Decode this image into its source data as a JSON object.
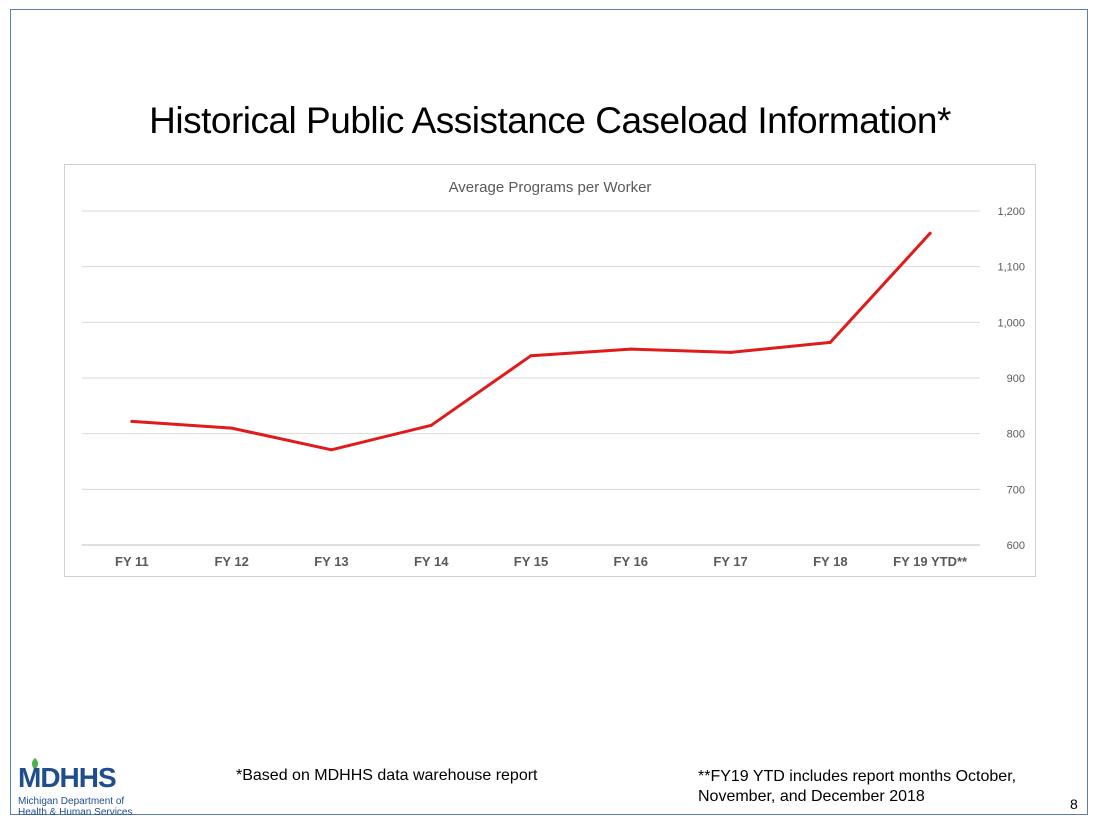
{
  "slide": {
    "title": "Historical Public Assistance Caseload Information*",
    "footnote_left": "*Based on MDHHS data warehouse report",
    "footnote_right": "**FY19 YTD includes report months October, November, and December 2018",
    "page_number": "8",
    "frame_color": "#5b7fb5"
  },
  "logo": {
    "name": "MDHHS",
    "line1": "Michigan Department of",
    "line2": "Health & Human Services",
    "color": "#1f4e8c",
    "leaf_color": "#4caf50"
  },
  "chart_data": {
    "type": "line",
    "title": "Average Programs per Worker",
    "categories": [
      "FY 11",
      "FY 12",
      "FY 13",
      "FY 14",
      "FY 15",
      "FY 16",
      "FY 17",
      "FY 18",
      "FY 19 YTD**"
    ],
    "series": [
      {
        "values": [
          822,
          810,
          771,
          815,
          940,
          952,
          946,
          964,
          1160
        ],
        "color": "#e01b1b"
      }
    ],
    "ylim": [
      600,
      1200
    ],
    "yticks": [
      600,
      700,
      800,
      900,
      1000,
      1100,
      1200
    ],
    "ytick_labels": [
      "600",
      "700",
      "800",
      "900",
      "1,000",
      "1,100",
      "1,200"
    ],
    "y_axis_side": "right",
    "grid": true,
    "legend": "none"
  }
}
